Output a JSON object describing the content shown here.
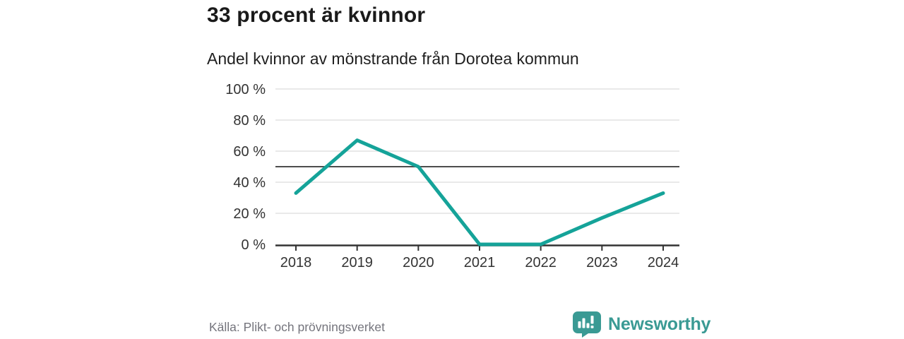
{
  "header": {
    "title": "33 procent är kvinnor",
    "subtitle": "Andel kvinnor av mönstrande från Dorotea kommun"
  },
  "chart_data": {
    "type": "line",
    "categories": [
      "2018",
      "2019",
      "2020",
      "2021",
      "2022",
      "2023",
      "2024"
    ],
    "series": [
      {
        "name": "Andel kvinnor av mönstrande",
        "values": [
          33,
          67,
          50,
          0,
          0,
          17,
          33
        ]
      }
    ],
    "ylim": [
      0,
      100
    ],
    "yticks": [
      {
        "value": 0,
        "label": "0 %"
      },
      {
        "value": 20,
        "label": "20 %"
      },
      {
        "value": 40,
        "label": "40 %"
      },
      {
        "value": 60,
        "label": "60 %"
      },
      {
        "value": 80,
        "label": "80 %"
      },
      {
        "value": 100,
        "label": "100 %"
      }
    ],
    "reference_line": 50,
    "grid": true,
    "legend": "none"
  },
  "footer": {
    "source": "Källa: Plikt- och prövningsverket",
    "brand_name": "Newsworthy",
    "brand_logo_icon": "speech-bubble-bar-chart-exclamation"
  },
  "colors": {
    "accent": "#15a399",
    "brand": "#3a9a94",
    "grid": "#dcdcdc",
    "reference": "#4d4d4d",
    "axis": "#333333",
    "text": "#333333",
    "muted": "#75757d"
  }
}
